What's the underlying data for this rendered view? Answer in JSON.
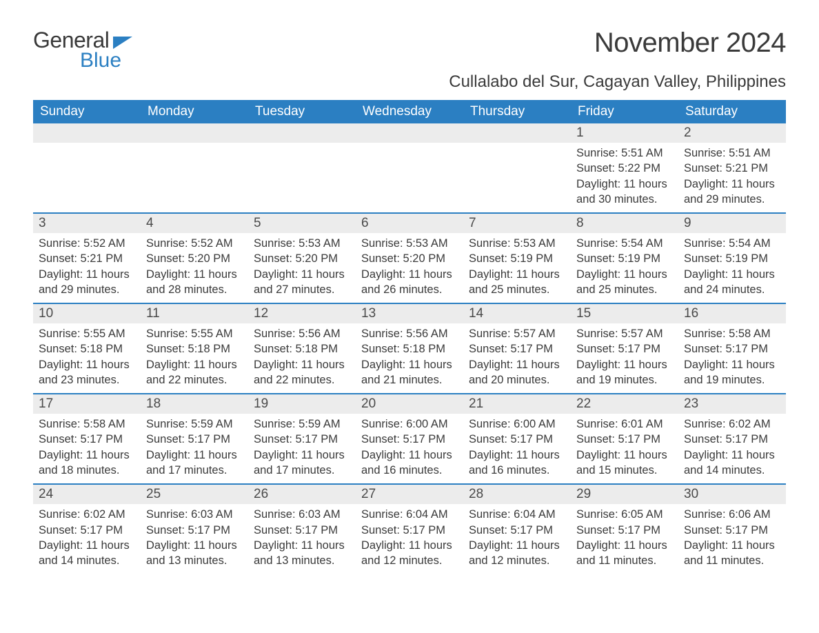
{
  "logo": {
    "text_general": "General",
    "text_blue": "Blue",
    "brand_color": "#2b7fc2"
  },
  "title": {
    "month": "November 2024",
    "location": "Cullalabo del Sur, Cagayan Valley, Philippines"
  },
  "colors": {
    "header_bg": "#2b7fc2",
    "header_text": "#ffffff",
    "daynum_bg": "#ececec",
    "text": "#3a3a3a",
    "row_divider": "#2b7fc2"
  },
  "fonts": {
    "title_pt": 40,
    "location_pt": 24,
    "dayheader_pt": 19,
    "daynum_pt": 19,
    "info_pt": 16.5
  },
  "calendar": {
    "day_names": [
      "Sunday",
      "Monday",
      "Tuesday",
      "Wednesday",
      "Thursday",
      "Friday",
      "Saturday"
    ],
    "weeks": [
      [
        {
          "day": "",
          "sunrise": "",
          "sunset": "",
          "daylight": ""
        },
        {
          "day": "",
          "sunrise": "",
          "sunset": "",
          "daylight": ""
        },
        {
          "day": "",
          "sunrise": "",
          "sunset": "",
          "daylight": ""
        },
        {
          "day": "",
          "sunrise": "",
          "sunset": "",
          "daylight": ""
        },
        {
          "day": "",
          "sunrise": "",
          "sunset": "",
          "daylight": ""
        },
        {
          "day": "1",
          "sunrise": "Sunrise: 5:51 AM",
          "sunset": "Sunset: 5:22 PM",
          "daylight": "Daylight: 11 hours and 30 minutes."
        },
        {
          "day": "2",
          "sunrise": "Sunrise: 5:51 AM",
          "sunset": "Sunset: 5:21 PM",
          "daylight": "Daylight: 11 hours and 29 minutes."
        }
      ],
      [
        {
          "day": "3",
          "sunrise": "Sunrise: 5:52 AM",
          "sunset": "Sunset: 5:21 PM",
          "daylight": "Daylight: 11 hours and 29 minutes."
        },
        {
          "day": "4",
          "sunrise": "Sunrise: 5:52 AM",
          "sunset": "Sunset: 5:20 PM",
          "daylight": "Daylight: 11 hours and 28 minutes."
        },
        {
          "day": "5",
          "sunrise": "Sunrise: 5:53 AM",
          "sunset": "Sunset: 5:20 PM",
          "daylight": "Daylight: 11 hours and 27 minutes."
        },
        {
          "day": "6",
          "sunrise": "Sunrise: 5:53 AM",
          "sunset": "Sunset: 5:20 PM",
          "daylight": "Daylight: 11 hours and 26 minutes."
        },
        {
          "day": "7",
          "sunrise": "Sunrise: 5:53 AM",
          "sunset": "Sunset: 5:19 PM",
          "daylight": "Daylight: 11 hours and 25 minutes."
        },
        {
          "day": "8",
          "sunrise": "Sunrise: 5:54 AM",
          "sunset": "Sunset: 5:19 PM",
          "daylight": "Daylight: 11 hours and 25 minutes."
        },
        {
          "day": "9",
          "sunrise": "Sunrise: 5:54 AM",
          "sunset": "Sunset: 5:19 PM",
          "daylight": "Daylight: 11 hours and 24 minutes."
        }
      ],
      [
        {
          "day": "10",
          "sunrise": "Sunrise: 5:55 AM",
          "sunset": "Sunset: 5:18 PM",
          "daylight": "Daylight: 11 hours and 23 minutes."
        },
        {
          "day": "11",
          "sunrise": "Sunrise: 5:55 AM",
          "sunset": "Sunset: 5:18 PM",
          "daylight": "Daylight: 11 hours and 22 minutes."
        },
        {
          "day": "12",
          "sunrise": "Sunrise: 5:56 AM",
          "sunset": "Sunset: 5:18 PM",
          "daylight": "Daylight: 11 hours and 22 minutes."
        },
        {
          "day": "13",
          "sunrise": "Sunrise: 5:56 AM",
          "sunset": "Sunset: 5:18 PM",
          "daylight": "Daylight: 11 hours and 21 minutes."
        },
        {
          "day": "14",
          "sunrise": "Sunrise: 5:57 AM",
          "sunset": "Sunset: 5:17 PM",
          "daylight": "Daylight: 11 hours and 20 minutes."
        },
        {
          "day": "15",
          "sunrise": "Sunrise: 5:57 AM",
          "sunset": "Sunset: 5:17 PM",
          "daylight": "Daylight: 11 hours and 19 minutes."
        },
        {
          "day": "16",
          "sunrise": "Sunrise: 5:58 AM",
          "sunset": "Sunset: 5:17 PM",
          "daylight": "Daylight: 11 hours and 19 minutes."
        }
      ],
      [
        {
          "day": "17",
          "sunrise": "Sunrise: 5:58 AM",
          "sunset": "Sunset: 5:17 PM",
          "daylight": "Daylight: 11 hours and 18 minutes."
        },
        {
          "day": "18",
          "sunrise": "Sunrise: 5:59 AM",
          "sunset": "Sunset: 5:17 PM",
          "daylight": "Daylight: 11 hours and 17 minutes."
        },
        {
          "day": "19",
          "sunrise": "Sunrise: 5:59 AM",
          "sunset": "Sunset: 5:17 PM",
          "daylight": "Daylight: 11 hours and 17 minutes."
        },
        {
          "day": "20",
          "sunrise": "Sunrise: 6:00 AM",
          "sunset": "Sunset: 5:17 PM",
          "daylight": "Daylight: 11 hours and 16 minutes."
        },
        {
          "day": "21",
          "sunrise": "Sunrise: 6:00 AM",
          "sunset": "Sunset: 5:17 PM",
          "daylight": "Daylight: 11 hours and 16 minutes."
        },
        {
          "day": "22",
          "sunrise": "Sunrise: 6:01 AM",
          "sunset": "Sunset: 5:17 PM",
          "daylight": "Daylight: 11 hours and 15 minutes."
        },
        {
          "day": "23",
          "sunrise": "Sunrise: 6:02 AM",
          "sunset": "Sunset: 5:17 PM",
          "daylight": "Daylight: 11 hours and 14 minutes."
        }
      ],
      [
        {
          "day": "24",
          "sunrise": "Sunrise: 6:02 AM",
          "sunset": "Sunset: 5:17 PM",
          "daylight": "Daylight: 11 hours and 14 minutes."
        },
        {
          "day": "25",
          "sunrise": "Sunrise: 6:03 AM",
          "sunset": "Sunset: 5:17 PM",
          "daylight": "Daylight: 11 hours and 13 minutes."
        },
        {
          "day": "26",
          "sunrise": "Sunrise: 6:03 AM",
          "sunset": "Sunset: 5:17 PM",
          "daylight": "Daylight: 11 hours and 13 minutes."
        },
        {
          "day": "27",
          "sunrise": "Sunrise: 6:04 AM",
          "sunset": "Sunset: 5:17 PM",
          "daylight": "Daylight: 11 hours and 12 minutes."
        },
        {
          "day": "28",
          "sunrise": "Sunrise: 6:04 AM",
          "sunset": "Sunset: 5:17 PM",
          "daylight": "Daylight: 11 hours and 12 minutes."
        },
        {
          "day": "29",
          "sunrise": "Sunrise: 6:05 AM",
          "sunset": "Sunset: 5:17 PM",
          "daylight": "Daylight: 11 hours and 11 minutes."
        },
        {
          "day": "30",
          "sunrise": "Sunrise: 6:06 AM",
          "sunset": "Sunset: 5:17 PM",
          "daylight": "Daylight: 11 hours and 11 minutes."
        }
      ]
    ]
  }
}
